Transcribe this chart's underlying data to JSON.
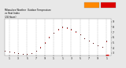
{
  "title": "Milwaukee Weather  Outdoor Temperature\nvs Heat Index\n(24 Hours)",
  "bg_color": "#e8e8e8",
  "plot_bg": "#ffffff",
  "legend_orange": "#ff8800",
  "legend_red": "#dd0000",
  "xlim": [
    0,
    24
  ],
  "ylim": [
    25,
    95
  ],
  "ytick_vals": [
    30,
    40,
    50,
    60,
    70,
    80,
    90
  ],
  "ytick_labels": [
    "3",
    "4",
    "5",
    "6",
    "7",
    "8",
    "9"
  ],
  "xtick_vals": [
    1,
    3,
    5,
    7,
    9,
    11,
    13,
    15,
    17,
    19,
    21,
    23
  ],
  "xtick_labels": [
    "1",
    "3",
    "5",
    "7",
    "9",
    "1",
    "1",
    "3",
    "5",
    "7",
    "9",
    "1"
  ],
  "temp_color": "#cc0000",
  "heat_color": "#330000",
  "time_hours": [
    0,
    1,
    2,
    3,
    4,
    5,
    6,
    7,
    8,
    9,
    10,
    11,
    12,
    13,
    14,
    15,
    16,
    17,
    18,
    19,
    20,
    21,
    22,
    23
  ],
  "temp_values": [
    35,
    33,
    31,
    30,
    29,
    28,
    30,
    34,
    42,
    51,
    61,
    69,
    75,
    79,
    77,
    74,
    70,
    65,
    59,
    54,
    50,
    45,
    42,
    53
  ],
  "heat_values": [
    35,
    33,
    31,
    30,
    29,
    28,
    30,
    34,
    41,
    50,
    60,
    68,
    76,
    81,
    79,
    76,
    71,
    65,
    59,
    54,
    50,
    45,
    42,
    54
  ]
}
